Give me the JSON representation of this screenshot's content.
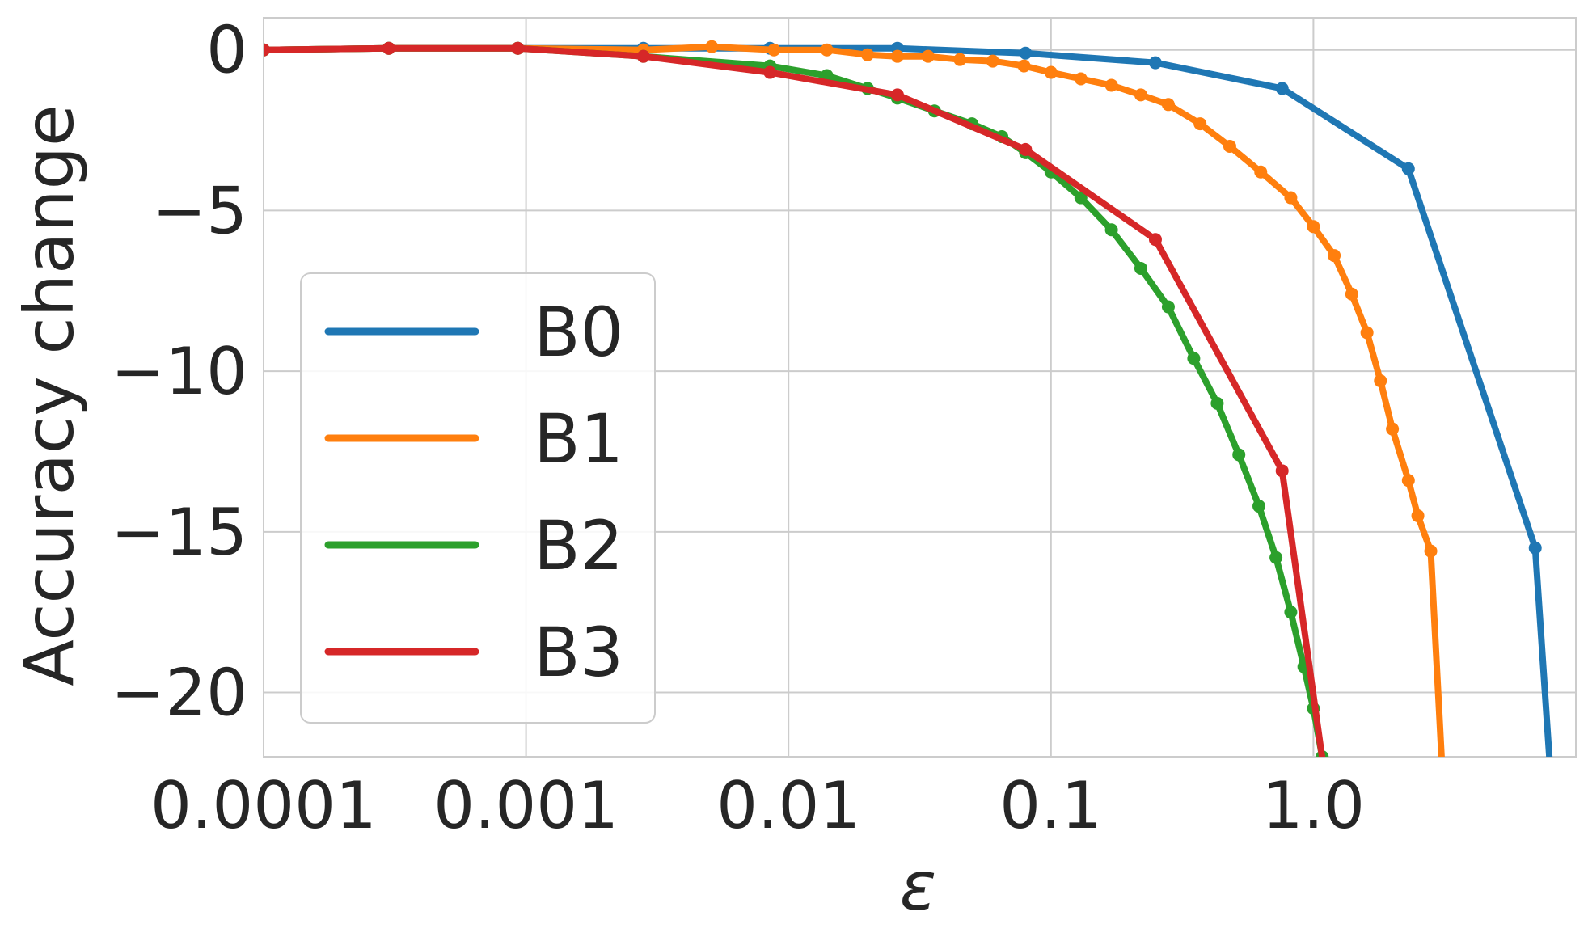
{
  "chart_data": {
    "type": "line",
    "xlabel": "ε",
    "ylabel": "Accuracy change",
    "xscale": "log",
    "xlim": [
      0.0001,
      10.0
    ],
    "ylim": [
      -22,
      1
    ],
    "x_ticks": [
      0.0001,
      0.001,
      0.01,
      0.1,
      1.0
    ],
    "x_tick_labels": [
      "0.0001",
      "0.001",
      "0.01",
      "0.1",
      "1.0"
    ],
    "y_ticks": [
      0,
      -5,
      -10,
      -15,
      -20
    ],
    "y_tick_labels": [
      "0",
      "−5",
      "−10",
      "−15",
      "−20"
    ],
    "grid": true,
    "legend_position": "center-left",
    "series": [
      {
        "name": "B0",
        "color": "#1f77b4",
        "x": [
          0.0001,
          0.0003,
          0.00093,
          0.0028,
          0.0085,
          0.026,
          0.08,
          0.25,
          0.76,
          2.3,
          7.0,
          8.0
        ],
        "y": [
          0,
          0.05,
          0.05,
          0.05,
          0.05,
          0.05,
          -0.1,
          -0.4,
          -1.2,
          -3.7,
          -15.5,
          -22.5
        ]
      },
      {
        "name": "B1",
        "color": "#ff7f0e",
        "x": [
          0.0001,
          0.0003,
          0.00093,
          0.0028,
          0.0051,
          0.0088,
          0.014,
          0.02,
          0.026,
          0.034,
          0.045,
          0.06,
          0.079,
          0.1,
          0.13,
          0.17,
          0.22,
          0.28,
          0.37,
          0.48,
          0.63,
          0.82,
          1.0,
          1.2,
          1.4,
          1.6,
          1.8,
          2.0,
          2.3,
          2.5,
          2.8,
          3.1
        ],
        "y": [
          0,
          0.05,
          0.05,
          0.0,
          0.1,
          0.0,
          0.0,
          -0.15,
          -0.2,
          -0.2,
          -0.3,
          -0.35,
          -0.5,
          -0.7,
          -0.9,
          -1.1,
          -1.4,
          -1.7,
          -2.3,
          -3.0,
          -3.8,
          -4.6,
          -5.5,
          -6.4,
          -7.6,
          -8.8,
          -10.3,
          -11.8,
          -13.4,
          -14.5,
          -15.6,
          -22.5
        ]
      },
      {
        "name": "B2",
        "color": "#2ca02c",
        "x": [
          0.0001,
          0.0003,
          0.00093,
          0.0028,
          0.0085,
          0.014,
          0.02,
          0.026,
          0.036,
          0.05,
          0.065,
          0.08,
          0.1,
          0.13,
          0.17,
          0.22,
          0.28,
          0.35,
          0.43,
          0.52,
          0.62,
          0.72,
          0.82,
          0.92,
          1.0,
          1.08
        ],
        "y": [
          0,
          0.05,
          0.05,
          -0.2,
          -0.5,
          -0.8,
          -1.2,
          -1.5,
          -1.9,
          -2.3,
          -2.7,
          -3.2,
          -3.8,
          -4.6,
          -5.6,
          -6.8,
          -8.0,
          -9.6,
          -11.0,
          -12.6,
          -14.2,
          -15.8,
          -17.5,
          -19.2,
          -20.5,
          -22.0
        ]
      },
      {
        "name": "B3",
        "color": "#d62728",
        "x": [
          0.0001,
          0.0003,
          0.00093,
          0.0028,
          0.0085,
          0.026,
          0.08,
          0.25,
          0.76,
          1.1
        ],
        "y": [
          0,
          0.05,
          0.05,
          -0.2,
          -0.7,
          -1.4,
          -3.1,
          -5.9,
          -13.1,
          -22.5
        ]
      }
    ]
  }
}
